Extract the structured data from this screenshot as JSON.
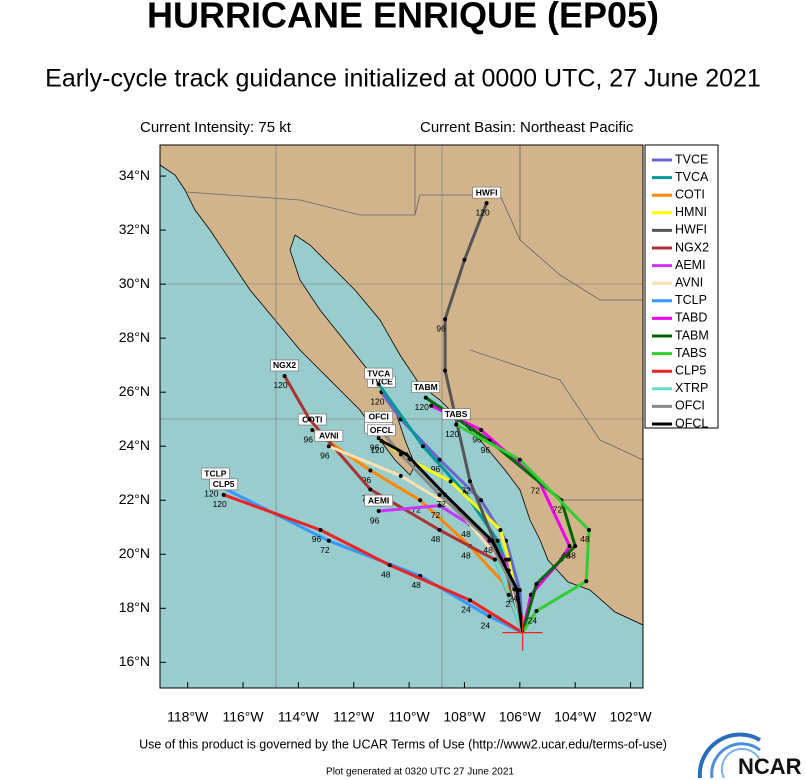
{
  "title": "HURRICANE ENRIQUE (EP05)",
  "subtitle": "Early-cycle track guidance initialized at 0000 UTC, 27 June 2021",
  "info": {
    "intensity": "Current Intensity: 75 kt",
    "basin": "Current Basin: Northeast Pacific"
  },
  "map": {
    "xlim": [
      -119.0,
      -101.55
    ],
    "ylim": [
      15.05,
      35.15
    ],
    "xticks": [
      {
        "value": -118,
        "label": "118°W"
      },
      {
        "value": -116,
        "label": "116°W"
      },
      {
        "value": -114,
        "label": "114°W"
      },
      {
        "value": -112,
        "label": "112°W"
      },
      {
        "value": -110,
        "label": "110°W"
      },
      {
        "value": -108,
        "label": "108°W"
      },
      {
        "value": -106,
        "label": "106°W"
      },
      {
        "value": -104,
        "label": "104°W"
      },
      {
        "value": -102,
        "label": "102°W"
      }
    ],
    "yticks": [
      {
        "value": 16,
        "label": "16°N"
      },
      {
        "value": 18,
        "label": "18°N"
      },
      {
        "value": 20,
        "label": "20°N"
      },
      {
        "value": 22,
        "label": "22°N"
      },
      {
        "value": 24,
        "label": "24°N"
      },
      {
        "value": 26,
        "label": "26°N"
      },
      {
        "value": 28,
        "label": "28°N"
      },
      {
        "value": 30,
        "label": "30°N"
      },
      {
        "value": 32,
        "label": "32°N"
      },
      {
        "value": 34,
        "label": "34°N"
      }
    ],
    "initial_position": {
      "lon": -105.9,
      "lat": 17.1,
      "color": "#ee2222"
    },
    "tracks": [
      {
        "name": "TVCE",
        "color": "#6666cc",
        "map_tag": true,
        "lon": [
          -105.9,
          -106.0,
          -106.5,
          -107.4,
          -108.9,
          -110.3,
          -111.0
        ],
        "lat": [
          17.1,
          18.67,
          20.5,
          22.0,
          23.5,
          25.0,
          26.0
        ],
        "labels": [
          null,
          null,
          null,
          null,
          "96",
          null,
          "120"
        ]
      },
      {
        "name": "TVCA",
        "color": "#009999",
        "map_tag": true,
        "lon": [
          -105.9,
          -106.1,
          -106.8,
          -108.0,
          -109.5,
          -111.1
        ],
        "lat": [
          17.1,
          18.6,
          20.5,
          22.3,
          24.0,
          26.3
        ],
        "labels": [
          null,
          null,
          null,
          null,
          null,
          null
        ]
      },
      {
        "name": "COTI",
        "color": "#ff8800",
        "map_tag": true,
        "lon": [
          -105.9,
          -106.2,
          -107.8,
          -109.6,
          -111.4,
          -113.5
        ],
        "lat": [
          17.1,
          18.5,
          20.3,
          22.0,
          23.1,
          24.6
        ],
        "labels": [
          null,
          "24",
          "48",
          "72",
          "96",
          "96"
        ]
      },
      {
        "name": "HMNI",
        "color": "#ffff00",
        "map_tag": true,
        "lon": [
          -105.9,
          -106.4,
          -106.7,
          -108.5,
          -110.0,
          -111.1
        ],
        "lat": [
          17.1,
          19.8,
          20.9,
          22.7,
          23.5,
          24.3
        ],
        "labels": [
          null,
          null,
          null,
          null,
          null,
          "96"
        ]
      },
      {
        "name": "HWFI",
        "color": "#555555",
        "map_tag": true,
        "lon": [
          -105.9,
          -106.5,
          -107.8,
          -108.7,
          -108.7,
          -108.0,
          -107.2
        ],
        "lat": [
          17.1,
          19.4,
          22.7,
          26.8,
          28.7,
          30.9,
          33.0
        ],
        "labels": [
          null,
          null,
          "72",
          null,
          "96",
          null,
          "120"
        ]
      },
      {
        "name": "NGX2",
        "color": "#aa3333",
        "map_tag": true,
        "lon": [
          -105.9,
          -106.9,
          -108.9,
          -111.4,
          -113.6,
          -114.5
        ],
        "lat": [
          17.1,
          19.8,
          20.9,
          22.4,
          25.0,
          26.6
        ],
        "labels": [
          null,
          null,
          "48",
          "72",
          null,
          "120"
        ]
      },
      {
        "name": "AEMI",
        "color": "#cc33ff",
        "map_tag": true,
        "lon": [
          -105.9,
          -106.5,
          -107.8,
          -108.9,
          -111.1
        ],
        "lat": [
          17.1,
          19.8,
          21.1,
          21.8,
          21.6
        ],
        "labels": [
          null,
          null,
          "48",
          "72",
          "96"
        ]
      },
      {
        "name": "AVNI",
        "color": "#ffe0b0",
        "map_tag": true,
        "lon": [
          -105.9,
          -106.4,
          -108.2,
          -110.3,
          -112.9
        ],
        "lat": [
          17.1,
          19.4,
          21.6,
          22.9,
          24.0
        ],
        "labels": [
          null,
          null,
          null,
          null,
          "96"
        ]
      },
      {
        "name": "TCLP",
        "color": "#3399ff",
        "map_tag": true,
        "lon": [
          -105.9,
          -107.1,
          -109.6,
          -112.9,
          -117.0
        ],
        "lat": [
          17.1,
          17.7,
          19.2,
          20.5,
          22.6
        ],
        "labels": [
          null,
          "24",
          "48",
          "72",
          "120"
        ]
      },
      {
        "name": "TABD",
        "color": "#ee00ee",
        "map_tag": false,
        "lon": [
          -105.9,
          -105.6,
          -104.5,
          -104.2,
          -105.3,
          -107.4,
          -109.2
        ],
        "lat": [
          17.1,
          18.5,
          19.8,
          20.3,
          22.7,
          24.6,
          25.5
        ],
        "labels": [
          null,
          null,
          null,
          "48",
          "72",
          "96",
          null
        ]
      },
      {
        "name": "TABM",
        "color": "#006600",
        "map_tag": true,
        "lon": [
          -105.9,
          -105.4,
          -104.0,
          -104.5,
          -107.1,
          -109.4
        ],
        "lat": [
          17.1,
          18.9,
          20.3,
          22.0,
          24.2,
          25.8
        ],
        "labels": [
          null,
          null,
          "48",
          "72",
          "96",
          "120"
        ]
      },
      {
        "name": "TABS",
        "color": "#33cc33",
        "map_tag": true,
        "lon": [
          -105.9,
          -105.4,
          -103.6,
          -103.5,
          -106.0,
          -108.3
        ],
        "lat": [
          17.1,
          17.9,
          19.0,
          20.9,
          23.5,
          24.8
        ],
        "labels": [
          null,
          "24",
          null,
          "48",
          null,
          "120"
        ]
      },
      {
        "name": "CLP5",
        "color": "#ee2222",
        "map_tag": true,
        "lon": [
          -105.9,
          -107.8,
          -110.7,
          -113.2,
          -116.7
        ],
        "lat": [
          17.1,
          18.3,
          19.6,
          20.9,
          22.2
        ],
        "labels": [
          null,
          "24",
          "48",
          "96",
          "120"
        ]
      },
      {
        "name": "XTRP",
        "color": "#66ddcc",
        "map_tag": false,
        "lon": [
          -105.9,
          -106.4,
          -106.9
        ],
        "lat": [
          17.1,
          18.5,
          19.8
        ],
        "labels": [
          null,
          null,
          null
        ]
      },
      {
        "name": "OFCI",
        "color": "#888888",
        "map_tag": true,
        "lon": [
          -105.9,
          -106.2,
          -107.1,
          -108.9,
          -110.3,
          -111.1
        ],
        "lat": [
          17.1,
          18.7,
          20.5,
          22.2,
          23.7,
          24.7
        ],
        "labels": [
          null,
          null,
          null,
          null,
          null,
          null
        ]
      },
      {
        "name": "OFCL",
        "color": "#000000",
        "map_tag": true,
        "lon": [
          -105.9,
          -106.1,
          -107.0,
          -108.7,
          -110.1,
          -111.0
        ],
        "lat": [
          17.1,
          18.7,
          20.5,
          22.2,
          23.7,
          24.2
        ],
        "labels": [
          null,
          "24",
          "48",
          "72",
          null,
          "120"
        ]
      }
    ]
  },
  "footer": {
    "terms": "Use of this product is governed by the UCAR Terms of Use (http://www2.ucar.edu/terms-of-use)",
    "generated": "Plot generated at 0320 UTC   27 June 2021",
    "logo": "NCAR"
  }
}
